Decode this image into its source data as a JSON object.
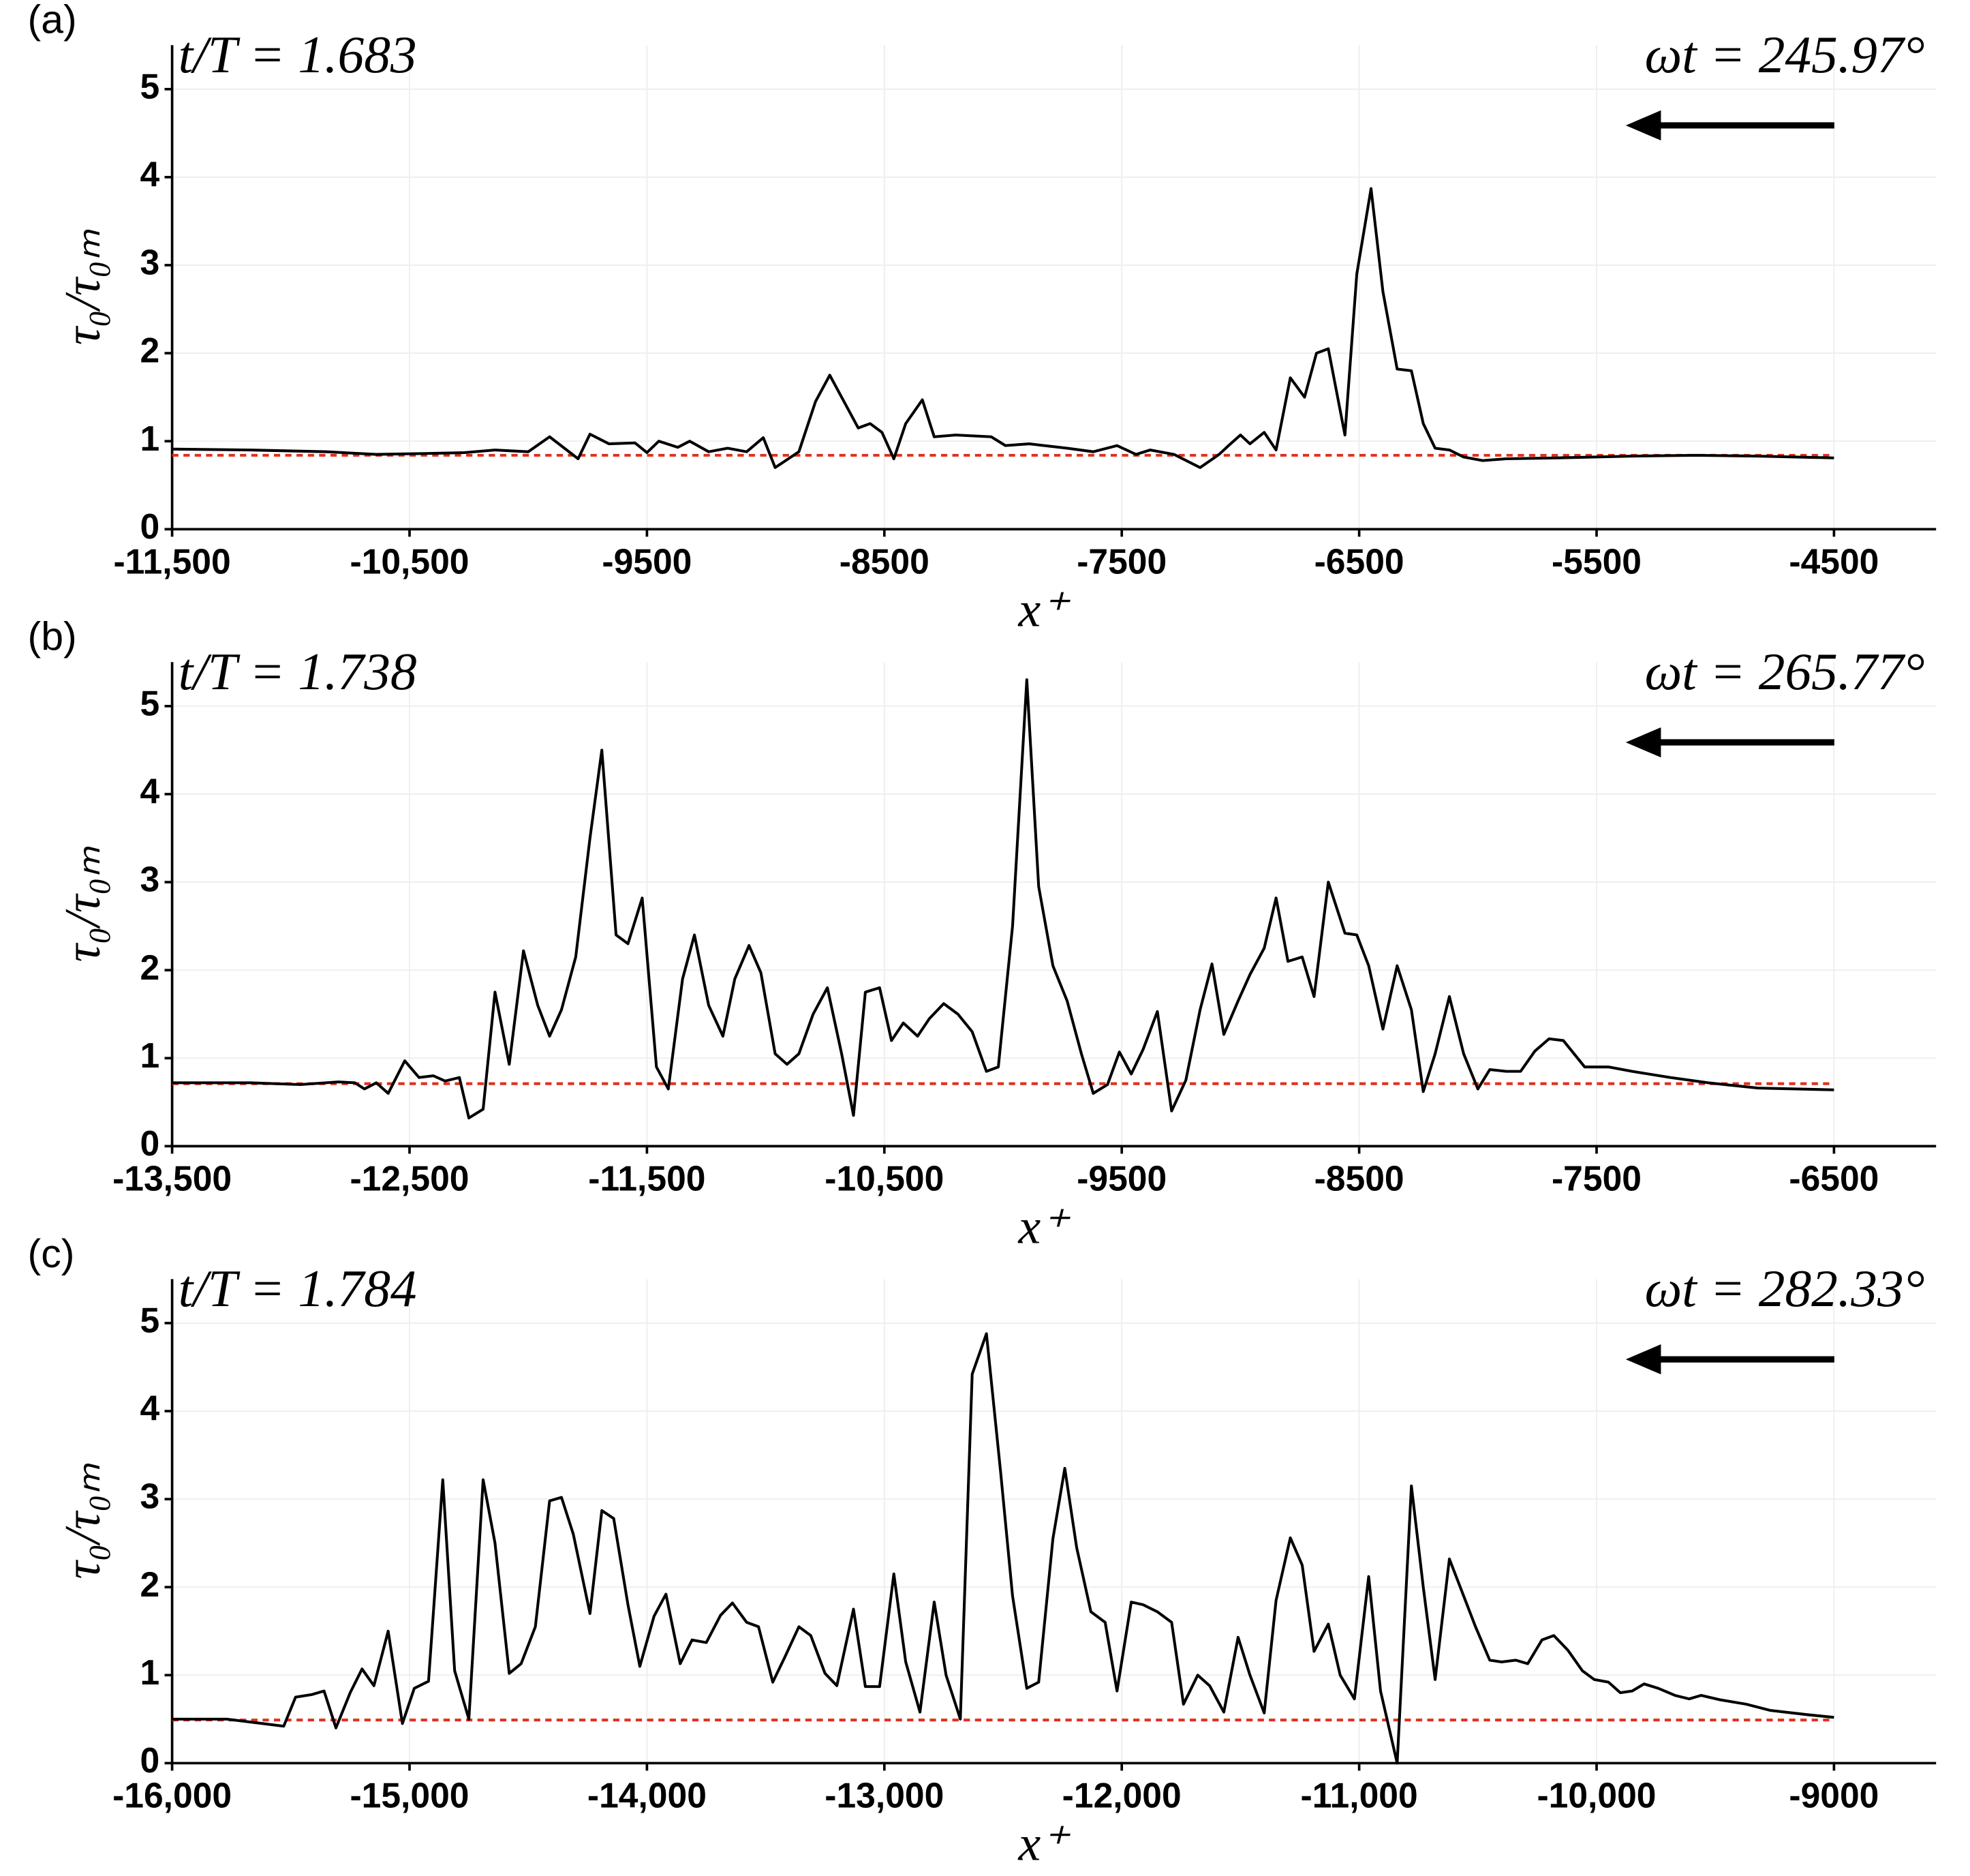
{
  "chart_data": [
    {
      "type": "line",
      "panel_label": "(a)",
      "title": "t/T = 1.683",
      "annotation": "ωt = 245.97°",
      "xlabel": "x⁺",
      "ylabel": "τ₀/τ₀ₘ",
      "xlim": [
        -11500,
        -4070
      ],
      "ylim": [
        0,
        5.5
      ],
      "xticks": [
        {
          "value": -11500,
          "label": "-11,500"
        },
        {
          "value": -10500,
          "label": "-10,500"
        },
        -9500,
        -8500,
        -7500,
        -6500,
        -5500,
        -4500
      ],
      "yticks": [
        0,
        1,
        2,
        3,
        4,
        5
      ],
      "grid": true,
      "hline": {
        "value": 0.84,
        "color": "#e0301e"
      },
      "series": [
        {
          "color": "#000000",
          "x": [
            -11500,
            -11170,
            -10850,
            -10640,
            -10430,
            -10270,
            -10140,
            -10000,
            -9910,
            -9790,
            -9740,
            -9660,
            -9550,
            -9500,
            -9450,
            -9370,
            -9320,
            -9240,
            -9160,
            -9080,
            -9010,
            -8960,
            -8860,
            -8790,
            -8730,
            -8670,
            -8610,
            -8560,
            -8510,
            -8460,
            -8410,
            -8340,
            -8290,
            -8200,
            -8050,
            -7990,
            -7890,
            -7730,
            -7620,
            -7520,
            -7440,
            -7380,
            -7280,
            -7170,
            -7090,
            -7050,
            -7000,
            -6960,
            -6900,
            -6850,
            -6790,
            -6730,
            -6680,
            -6630,
            -6560,
            -6510,
            -6450,
            -6400,
            -6340,
            -6280,
            -6230,
            -6180,
            -6120,
            -6060,
            -5980,
            -5880,
            -5670,
            -5350,
            -5080,
            -4820,
            -4500
          ],
          "values": [
            0.91,
            0.9,
            0.88,
            0.85,
            0.86,
            0.87,
            0.9,
            0.88,
            1.05,
            0.8,
            1.08,
            0.97,
            0.98,
            0.87,
            1.0,
            0.93,
            1.0,
            0.88,
            0.92,
            0.88,
            1.04,
            0.7,
            0.88,
            1.45,
            1.75,
            1.45,
            1.15,
            1.2,
            1.1,
            0.8,
            1.2,
            1.47,
            1.05,
            1.07,
            1.05,
            0.95,
            0.97,
            0.92,
            0.88,
            0.95,
            0.85,
            0.9,
            0.85,
            0.7,
            0.85,
            0.95,
            1.07,
            0.97,
            1.1,
            0.9,
            1.72,
            1.5,
            2.0,
            2.05,
            1.07,
            2.9,
            3.87,
            2.7,
            1.82,
            1.8,
            1.2,
            0.92,
            0.9,
            0.82,
            0.78,
            0.8,
            0.81,
            0.83,
            0.84,
            0.83,
            0.81
          ]
        }
      ]
    },
    {
      "type": "line",
      "panel_label": "(b)",
      "title": "t/T = 1.738",
      "annotation": "ωt = 265.77°",
      "xlabel": "x⁺",
      "ylabel": "τ₀/τ₀ₘ",
      "xlim": [
        -13500,
        -6070
      ],
      "ylim": [
        0,
        5.5
      ],
      "xticks": [
        {
          "value": -13500,
          "label": "-13,500"
        },
        {
          "value": -12500,
          "label": "-12,500"
        },
        {
          "value": -11500,
          "label": "-11,500"
        },
        {
          "value": -10500,
          "label": "-10,500"
        },
        -9500,
        -8500,
        -7500,
        -6500
      ],
      "yticks": [
        0,
        1,
        2,
        3,
        4,
        5
      ],
      "grid": true,
      "hline": {
        "value": 0.71,
        "color": "#e0301e"
      },
      "series": [
        {
          "color": "#000000",
          "x": [
            -13500,
            -13170,
            -12960,
            -12800,
            -12730,
            -12690,
            -12640,
            -12590,
            -12520,
            -12460,
            -12400,
            -12350,
            -12290,
            -12250,
            -12190,
            -12140,
            -12080,
            -12020,
            -11960,
            -11910,
            -11860,
            -11800,
            -11740,
            -11690,
            -11630,
            -11580,
            -11520,
            -11460,
            -11410,
            -11350,
            -11300,
            -11240,
            -11180,
            -11130,
            -11070,
            -11020,
            -10960,
            -10910,
            -10860,
            -10800,
            -10740,
            -10680,
            -10630,
            -10580,
            -10520,
            -10470,
            -10420,
            -10360,
            -10310,
            -10250,
            -10190,
            -10130,
            -10070,
            -10020,
            -9960,
            -9900,
            -9850,
            -9790,
            -9730,
            -9670,
            -9620,
            -9560,
            -9510,
            -9460,
            -9410,
            -9350,
            -9290,
            -9230,
            -9170,
            -9120,
            -9070,
            -9010,
            -8960,
            -8900,
            -8850,
            -8800,
            -8740,
            -8690,
            -8630,
            -8560,
            -8510,
            -8460,
            -8400,
            -8340,
            -8280,
            -8230,
            -8180,
            -8120,
            -8060,
            -8000,
            -7950,
            -7880,
            -7820,
            -7760,
            -7700,
            -7640,
            -7550,
            -7450,
            -7350,
            -7190,
            -7030,
            -6820,
            -6500
          ],
          "values": [
            0.72,
            0.72,
            0.7,
            0.73,
            0.72,
            0.65,
            0.72,
            0.6,
            0.97,
            0.78,
            0.8,
            0.74,
            0.78,
            0.32,
            0.42,
            1.75,
            0.93,
            2.22,
            1.6,
            1.25,
            1.55,
            2.15,
            3.5,
            4.5,
            2.4,
            2.3,
            2.82,
            0.9,
            0.65,
            1.9,
            2.4,
            1.6,
            1.25,
            1.9,
            2.28,
            1.97,
            1.05,
            0.93,
            1.05,
            1.5,
            1.8,
            1.05,
            0.35,
            1.75,
            1.8,
            1.2,
            1.4,
            1.25,
            1.45,
            1.62,
            1.5,
            1.3,
            0.85,
            0.9,
            2.5,
            5.3,
            2.95,
            2.05,
            1.65,
            1.05,
            0.6,
            0.7,
            1.07,
            0.82,
            1.1,
            1.53,
            0.4,
            0.75,
            1.55,
            2.07,
            1.27,
            1.65,
            1.95,
            2.25,
            2.82,
            2.1,
            2.15,
            1.7,
            3.0,
            2.42,
            2.4,
            2.05,
            1.33,
            2.05,
            1.55,
            0.62,
            1.05,
            1.7,
            1.05,
            0.65,
            0.87,
            0.85,
            0.85,
            1.08,
            1.22,
            1.2,
            0.9,
            0.9,
            0.85,
            0.78,
            0.72,
            0.66,
            0.64
          ]
        }
      ]
    },
    {
      "type": "line",
      "panel_label": "(c)",
      "title": "t/T = 1.784",
      "annotation": "ωt = 282.33°",
      "xlabel": "x⁺",
      "ylabel": "τ₀/τ₀ₘ",
      "xlim": [
        -16000,
        -8570
      ],
      "ylim": [
        0,
        5.5
      ],
      "xticks": [
        {
          "value": -16000,
          "label": "-16,000"
        },
        {
          "value": -15000,
          "label": "-15,000"
        },
        {
          "value": -14000,
          "label": "-14,000"
        },
        {
          "value": -13000,
          "label": "-13,000"
        },
        {
          "value": -12000,
          "label": "-12,000"
        },
        {
          "value": -11000,
          "label": "-11,000"
        },
        {
          "value": -10000,
          "label": "-10,000"
        },
        -9000
      ],
      "yticks": [
        0,
        1,
        2,
        3,
        4,
        5
      ],
      "grid": true,
      "hline": {
        "value": 0.49,
        "color": "#e0301e"
      },
      "series": [
        {
          "color": "#000000",
          "x": [
            -16000,
            -15770,
            -15530,
            -15480,
            -15410,
            -15360,
            -15310,
            -15250,
            -15200,
            -15150,
            -15090,
            -15030,
            -14980,
            -14920,
            -14860,
            -14810,
            -14750,
            -14690,
            -14640,
            -14580,
            -14530,
            -14470,
            -14410,
            -14360,
            -14310,
            -14240,
            -14190,
            -14140,
            -14080,
            -14030,
            -13970,
            -13920,
            -13860,
            -13810,
            -13750,
            -13690,
            -13640,
            -13580,
            -13530,
            -13470,
            -13420,
            -13360,
            -13310,
            -13250,
            -13200,
            -13130,
            -13080,
            -13020,
            -12960,
            -12910,
            -12850,
            -12790,
            -12740,
            -12680,
            -12630,
            -12570,
            -12510,
            -12460,
            -12400,
            -12350,
            -12290,
            -12240,
            -12190,
            -12130,
            -12070,
            -12020,
            -11960,
            -11910,
            -11850,
            -11790,
            -11740,
            -11680,
            -11630,
            -11570,
            -11510,
            -11460,
            -11400,
            -11350,
            -11290,
            -11240,
            -11190,
            -11130,
            -11080,
            -11020,
            -10960,
            -10910,
            -10840,
            -10780,
            -10730,
            -10680,
            -10620,
            -10560,
            -10510,
            -10450,
            -10400,
            -10340,
            -10290,
            -10230,
            -10180,
            -10120,
            -10060,
            -10010,
            -9950,
            -9900,
            -9850,
            -9800,
            -9740,
            -9670,
            -9610,
            -9560,
            -9480,
            -9370,
            -9270,
            -9110,
            -9000
          ],
          "values": [
            0.5,
            0.5,
            0.42,
            0.75,
            0.78,
            0.82,
            0.4,
            0.8,
            1.07,
            0.88,
            1.5,
            0.45,
            0.85,
            0.93,
            3.22,
            1.05,
            0.5,
            3.22,
            2.5,
            1.02,
            1.13,
            1.55,
            2.98,
            3.02,
            2.6,
            1.7,
            2.87,
            2.78,
            1.8,
            1.1,
            1.67,
            1.92,
            1.13,
            1.4,
            1.37,
            1.68,
            1.82,
            1.6,
            1.55,
            0.92,
            1.2,
            1.55,
            1.45,
            1.02,
            0.88,
            1.75,
            0.87,
            0.87,
            2.15,
            1.15,
            0.58,
            1.83,
            1.0,
            0.5,
            4.42,
            4.88,
            3.3,
            1.9,
            0.85,
            0.92,
            2.55,
            3.35,
            2.45,
            1.72,
            1.6,
            0.82,
            1.83,
            1.8,
            1.72,
            1.6,
            0.67,
            1.0,
            0.88,
            0.58,
            1.43,
            1.0,
            0.57,
            1.85,
            2.56,
            2.25,
            1.27,
            1.58,
            1.0,
            0.73,
            2.12,
            0.82,
            0.0,
            3.15,
            2.0,
            0.95,
            2.32,
            1.9,
            1.55,
            1.17,
            1.15,
            1.17,
            1.13,
            1.4,
            1.45,
            1.28,
            1.05,
            0.95,
            0.92,
            0.8,
            0.82,
            0.9,
            0.85,
            0.77,
            0.73,
            0.77,
            0.72,
            0.67,
            0.6,
            0.55,
            0.52
          ]
        }
      ]
    }
  ]
}
